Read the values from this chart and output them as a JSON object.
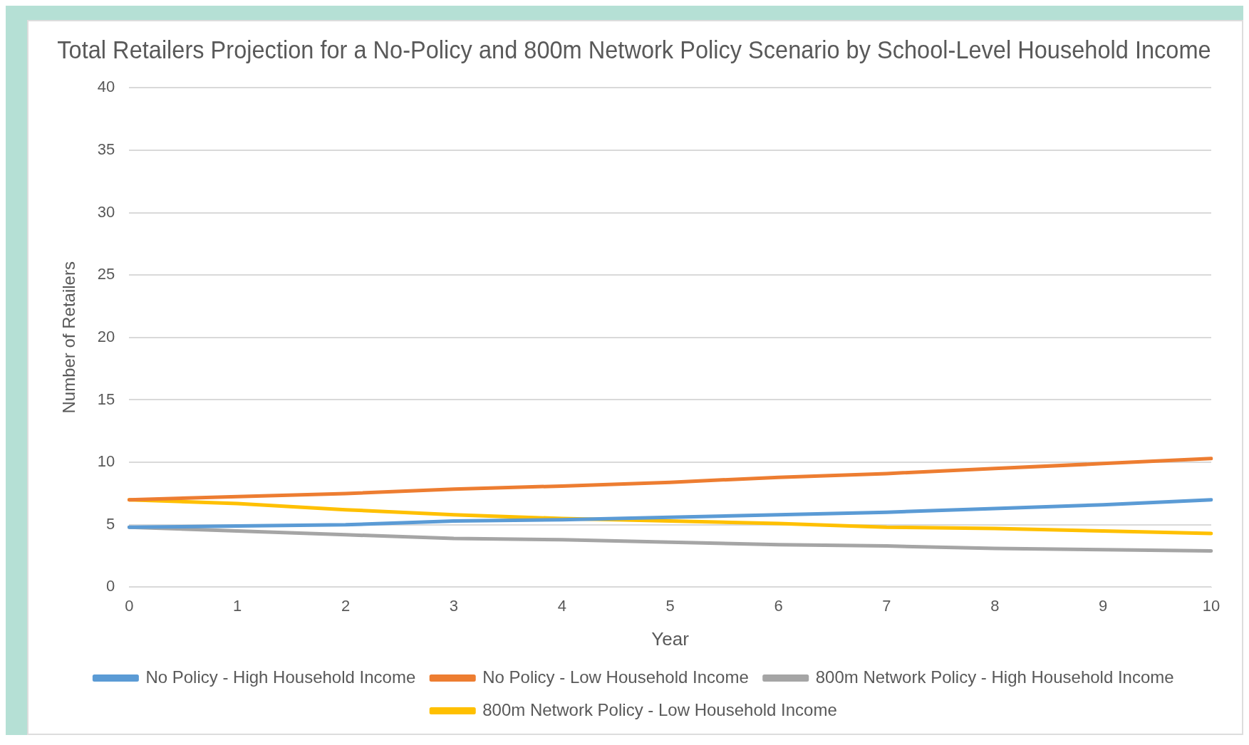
{
  "chart_data": {
    "type": "line",
    "title": "Total Retailers Projection for a No-Policy and 800m Network Policy Scenario by School-Level Household Income",
    "xlabel": "Year",
    "ylabel": "Number of Retailers",
    "categories": [
      "0",
      "1",
      "2",
      "3",
      "4",
      "5",
      "6",
      "7",
      "8",
      "9",
      "10"
    ],
    "series": [
      {
        "name": "No Policy - High Household Income",
        "color": "#5b9bd5",
        "values": [
          4.8,
          4.9,
          5.0,
          5.3,
          5.4,
          5.6,
          5.8,
          6.0,
          6.3,
          6.6,
          7.0
        ]
      },
      {
        "name": "No Policy - Low Household Income",
        "color": "#ed7d31",
        "values": [
          7.0,
          7.25,
          7.5,
          7.85,
          8.1,
          8.4,
          8.8,
          9.1,
          9.5,
          9.9,
          10.3
        ]
      },
      {
        "name": "800m Network Policy - High Household Income",
        "color": "#a5a5a5",
        "values": [
          4.8,
          4.5,
          4.2,
          3.9,
          3.8,
          3.6,
          3.4,
          3.3,
          3.1,
          3.0,
          2.9
        ]
      },
      {
        "name": "800m Network Policy - Low Household Income",
        "color": "#ffc000",
        "values": [
          7.0,
          6.7,
          6.2,
          5.8,
          5.5,
          5.3,
          5.1,
          4.8,
          4.7,
          4.5,
          4.3
        ]
      }
    ],
    "ylim": [
      0,
      40
    ],
    "yticks": [
      0,
      5,
      10,
      15,
      20,
      25,
      30,
      35,
      40
    ],
    "grid": "y",
    "legend": "bottom",
    "marker": "none",
    "line_style": "solid"
  }
}
